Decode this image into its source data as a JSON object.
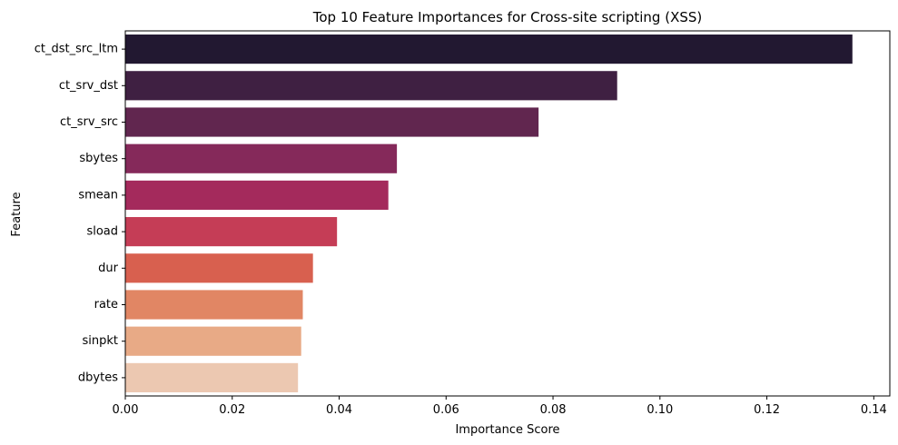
{
  "chart_data": {
    "type": "bar",
    "orientation": "horizontal",
    "title": "Top 10 Feature Importances for Cross-site scripting (XSS)",
    "xlabel": "Importance Score",
    "ylabel": "Feature",
    "categories": [
      "ct_dst_src_ltm",
      "ct_srv_dst",
      "ct_srv_src",
      "sbytes",
      "smean",
      "sload",
      "dur",
      "rate",
      "sinpkt",
      "dbytes"
    ],
    "values": [
      0.136,
      0.092,
      0.0773,
      0.0508,
      0.0492,
      0.0396,
      0.0351,
      0.0332,
      0.0329,
      0.0323
    ],
    "colors": [
      "#221831",
      "#3f2042",
      "#61264f",
      "#85295a",
      "#a42a5c",
      "#c53d56",
      "#d8604f",
      "#e18664",
      "#e8aa86",
      "#ecc8b1"
    ],
    "xlim": [
      0,
      0.143
    ],
    "xticks": [
      0.0,
      0.02,
      0.04,
      0.06,
      0.08,
      0.1,
      0.12,
      0.14
    ],
    "xtick_labels": [
      "0.00",
      "0.02",
      "0.04",
      "0.06",
      "0.08",
      "0.10",
      "0.12",
      "0.14"
    ],
    "grid": false,
    "legend": "none"
  }
}
